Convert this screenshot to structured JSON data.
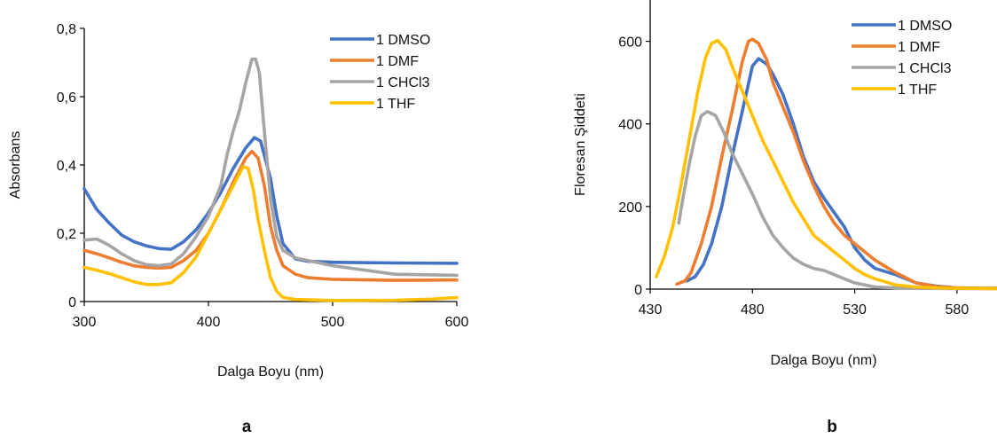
{
  "chart_data": [
    {
      "type": "line",
      "panel_label": "a",
      "xlabel": "Dalga Boyu (nm)",
      "ylabel": "Absorbans",
      "xlim": [
        300,
        600
      ],
      "ylim": [
        0,
        0.8
      ],
      "xticks": [
        300,
        400,
        500,
        600
      ],
      "xtick_labels": [
        "300",
        "400",
        "500",
        "600"
      ],
      "yticks": [
        0,
        0.2,
        0.4,
        0.6,
        0.8
      ],
      "ytick_labels": [
        "0",
        "0,2",
        "0,4",
        "0,6",
        "0,8"
      ],
      "grid": false,
      "legend_position": "top-right",
      "series": [
        {
          "name": "1 DMSO",
          "color": "#4472C4",
          "points": [
            [
              300,
              0.33
            ],
            [
              310,
              0.27
            ],
            [
              320,
              0.23
            ],
            [
              330,
              0.195
            ],
            [
              340,
              0.175
            ],
            [
              350,
              0.163
            ],
            [
              360,
              0.155
            ],
            [
              370,
              0.153
            ],
            [
              380,
              0.175
            ],
            [
              390,
              0.21
            ],
            [
              400,
              0.26
            ],
            [
              410,
              0.32
            ],
            [
              420,
              0.39
            ],
            [
              430,
              0.45
            ],
            [
              437,
              0.48
            ],
            [
              442,
              0.47
            ],
            [
              450,
              0.36
            ],
            [
              455,
              0.25
            ],
            [
              460,
              0.17
            ],
            [
              470,
              0.125
            ],
            [
              480,
              0.118
            ],
            [
              500,
              0.115
            ],
            [
              550,
              0.113
            ],
            [
              600,
              0.112
            ]
          ]
        },
        {
          "name": "1 DMF",
          "color": "#ED7D31",
          "points": [
            [
              300,
              0.15
            ],
            [
              310,
              0.14
            ],
            [
              320,
              0.128
            ],
            [
              330,
              0.115
            ],
            [
              340,
              0.105
            ],
            [
              350,
              0.1
            ],
            [
              360,
              0.098
            ],
            [
              370,
              0.1
            ],
            [
              380,
              0.12
            ],
            [
              390,
              0.15
            ],
            [
              400,
              0.2
            ],
            [
              410,
              0.27
            ],
            [
              420,
              0.35
            ],
            [
              430,
              0.42
            ],
            [
              435,
              0.44
            ],
            [
              440,
              0.42
            ],
            [
              445,
              0.34
            ],
            [
              450,
              0.22
            ],
            [
              455,
              0.15
            ],
            [
              460,
              0.105
            ],
            [
              470,
              0.08
            ],
            [
              480,
              0.07
            ],
            [
              500,
              0.065
            ],
            [
              550,
              0.062
            ],
            [
              600,
              0.063
            ]
          ]
        },
        {
          "name": "1 CHCl3",
          "color": "#A5A5A5",
          "points": [
            [
              300,
              0.18
            ],
            [
              310,
              0.183
            ],
            [
              320,
              0.165
            ],
            [
              330,
              0.14
            ],
            [
              340,
              0.12
            ],
            [
              350,
              0.108
            ],
            [
              360,
              0.105
            ],
            [
              370,
              0.11
            ],
            [
              380,
              0.14
            ],
            [
              390,
              0.19
            ],
            [
              400,
              0.25
            ],
            [
              410,
              0.34
            ],
            [
              415,
              0.43
            ],
            [
              420,
              0.5
            ],
            [
              425,
              0.56
            ],
            [
              430,
              0.64
            ],
            [
              435,
              0.71
            ],
            [
              438,
              0.71
            ],
            [
              441,
              0.67
            ],
            [
              445,
              0.5
            ],
            [
              450,
              0.3
            ],
            [
              455,
              0.19
            ],
            [
              460,
              0.15
            ],
            [
              470,
              0.128
            ],
            [
              480,
              0.12
            ],
            [
              500,
              0.105
            ],
            [
              550,
              0.08
            ],
            [
              600,
              0.077
            ]
          ]
        },
        {
          "name": "1 THF",
          "color": "#FFC000",
          "points": [
            [
              300,
              0.1
            ],
            [
              310,
              0.092
            ],
            [
              320,
              0.082
            ],
            [
              330,
              0.07
            ],
            [
              340,
              0.058
            ],
            [
              350,
              0.05
            ],
            [
              360,
              0.05
            ],
            [
              370,
              0.055
            ],
            [
              380,
              0.085
            ],
            [
              390,
              0.13
            ],
            [
              400,
              0.2
            ],
            [
              410,
              0.27
            ],
            [
              420,
              0.34
            ],
            [
              428,
              0.395
            ],
            [
              432,
              0.39
            ],
            [
              436,
              0.33
            ],
            [
              440,
              0.24
            ],
            [
              445,
              0.15
            ],
            [
              450,
              0.07
            ],
            [
              455,
              0.03
            ],
            [
              460,
              0.012
            ],
            [
              470,
              0.006
            ],
            [
              500,
              0.003
            ],
            [
              550,
              0.004
            ],
            [
              580,
              0.007
            ],
            [
              600,
              0.012
            ]
          ]
        }
      ]
    },
    {
      "type": "line",
      "panel_label": "b",
      "xlabel": "Dalga Boyu (nm)",
      "ylabel": "Floresan Şiddeti",
      "xlim": [
        430,
        600
      ],
      "ylim": [
        0,
        700
      ],
      "xticks": [
        430,
        480,
        530,
        580
      ],
      "xtick_labels": [
        "430",
        "480",
        "530",
        "580"
      ],
      "yticks": [
        0,
        200,
        400,
        600
      ],
      "ytick_labels": [
        "0",
        "200",
        "400",
        "600"
      ],
      "grid": false,
      "legend_position": "top-right",
      "series": [
        {
          "name": "1 DMSO",
          "color": "#4472C4",
          "points": [
            [
              448,
              20
            ],
            [
              452,
              30
            ],
            [
              456,
              60
            ],
            [
              460,
              110
            ],
            [
              465,
              200
            ],
            [
              470,
              320
            ],
            [
              475,
              430
            ],
            [
              480,
              540
            ],
            [
              483,
              558
            ],
            [
              487,
              545
            ],
            [
              490,
              520
            ],
            [
              495,
              470
            ],
            [
              500,
              400
            ],
            [
              505,
              320
            ],
            [
              510,
              260
            ],
            [
              515,
              220
            ],
            [
              520,
              185
            ],
            [
              525,
              150
            ],
            [
              530,
              100
            ],
            [
              535,
              70
            ],
            [
              540,
              50
            ],
            [
              550,
              35
            ],
            [
              560,
              15
            ],
            [
              570,
              7
            ],
            [
              580,
              3
            ],
            [
              590,
              2
            ],
            [
              600,
              2
            ]
          ]
        },
        {
          "name": "1 DMF",
          "color": "#ED7D31",
          "points": [
            [
              443,
              12
            ],
            [
              447,
              20
            ],
            [
              450,
              40
            ],
            [
              455,
              110
            ],
            [
              460,
              200
            ],
            [
              465,
              320
            ],
            [
              470,
              430
            ],
            [
              475,
              550
            ],
            [
              478,
              600
            ],
            [
              480,
              605
            ],
            [
              483,
              595
            ],
            [
              487,
              555
            ],
            [
              490,
              500
            ],
            [
              495,
              440
            ],
            [
              500,
              380
            ],
            [
              505,
              310
            ],
            [
              510,
              250
            ],
            [
              515,
              200
            ],
            [
              520,
              160
            ],
            [
              525,
              130
            ],
            [
              530,
              110
            ],
            [
              535,
              90
            ],
            [
              540,
              70
            ],
            [
              550,
              40
            ],
            [
              560,
              15
            ],
            [
              570,
              6
            ],
            [
              580,
              3
            ],
            [
              590,
              2
            ],
            [
              600,
              2
            ]
          ]
        },
        {
          "name": "1 CHCl3",
          "color": "#A5A5A5",
          "points": [
            [
              444,
              160
            ],
            [
              446,
              220
            ],
            [
              449,
              300
            ],
            [
              452,
              370
            ],
            [
              455,
              420
            ],
            [
              458,
              430
            ],
            [
              462,
              420
            ],
            [
              466,
              380
            ],
            [
              470,
              330
            ],
            [
              475,
              280
            ],
            [
              480,
              230
            ],
            [
              485,
              175
            ],
            [
              490,
              130
            ],
            [
              495,
              100
            ],
            [
              500,
              75
            ],
            [
              505,
              60
            ],
            [
              510,
              50
            ],
            [
              515,
              45
            ],
            [
              520,
              35
            ],
            [
              525,
              25
            ],
            [
              530,
              15
            ],
            [
              535,
              10
            ],
            [
              540,
              5
            ],
            [
              550,
              3
            ],
            [
              560,
              2
            ],
            [
              580,
              1
            ],
            [
              600,
              1
            ]
          ]
        },
        {
          "name": "1 THF",
          "color": "#FFC000",
          "points": [
            [
              433,
              30
            ],
            [
              437,
              80
            ],
            [
              441,
              150
            ],
            [
              445,
              250
            ],
            [
              449,
              360
            ],
            [
              453,
              470
            ],
            [
              457,
              560
            ],
            [
              460,
              595
            ],
            [
              463,
              602
            ],
            [
              467,
              580
            ],
            [
              470,
              540
            ],
            [
              475,
              480
            ],
            [
              480,
              420
            ],
            [
              485,
              360
            ],
            [
              490,
              310
            ],
            [
              495,
              260
            ],
            [
              500,
              210
            ],
            [
              505,
              170
            ],
            [
              510,
              130
            ],
            [
              515,
              110
            ],
            [
              520,
              90
            ],
            [
              525,
              70
            ],
            [
              530,
              50
            ],
            [
              535,
              35
            ],
            [
              540,
              25
            ],
            [
              550,
              10
            ],
            [
              560,
              5
            ],
            [
              570,
              3
            ],
            [
              580,
              2
            ],
            [
              600,
              1
            ]
          ]
        }
      ]
    }
  ]
}
